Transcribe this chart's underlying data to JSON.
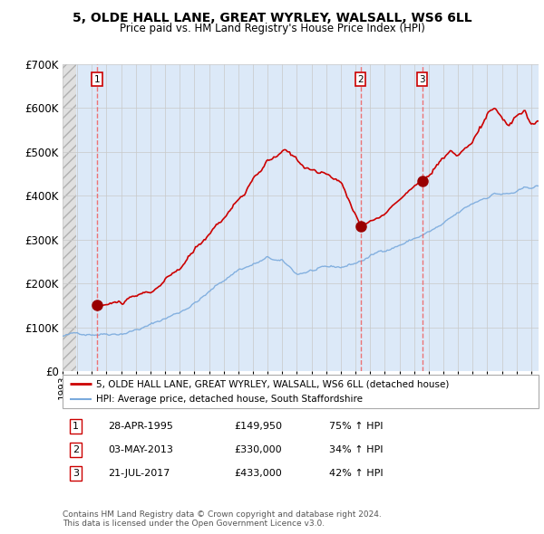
{
  "title": "5, OLDE HALL LANE, GREAT WYRLEY, WALSALL, WS6 6LL",
  "subtitle": "Price paid vs. HM Land Registry's House Price Index (HPI)",
  "xlim": [
    1993.0,
    2025.5
  ],
  "ylim": [
    0,
    700000
  ],
  "yticks": [
    0,
    100000,
    200000,
    300000,
    400000,
    500000,
    600000,
    700000
  ],
  "ytick_labels": [
    "£0",
    "£100K",
    "£200K",
    "£300K",
    "£400K",
    "£500K",
    "£600K",
    "£700K"
  ],
  "sale_dates": [
    1995.33,
    2013.34,
    2017.55
  ],
  "sale_prices": [
    149950,
    330000,
    433000
  ],
  "sale_numbers": [
    "1",
    "2",
    "3"
  ],
  "hpi_color": "#7aaadd",
  "sale_color": "#cc0000",
  "dashed_color": "#ee6666",
  "legend_entries": [
    "5, OLDE HALL LANE, GREAT WYRLEY, WALSALL, WS6 6LL (detached house)",
    "HPI: Average price, detached house, South Staffordshire"
  ],
  "table_rows": [
    [
      "1",
      "28-APR-1995",
      "£149,950",
      "75% ↑ HPI"
    ],
    [
      "2",
      "03-MAY-2013",
      "£330,000",
      "34% ↑ HPI"
    ],
    [
      "3",
      "21-JUL-2017",
      "£433,000",
      "42% ↑ HPI"
    ]
  ],
  "footer": "Contains HM Land Registry data © Crown copyright and database right 2024.\nThis data is licensed under the Open Government Licence v3.0.",
  "background_left_color": "#e0e0e0",
  "background_right_color": "#dce9f8",
  "grid_color": "#c8c8c8",
  "hatch_color": "#b0b0b0"
}
